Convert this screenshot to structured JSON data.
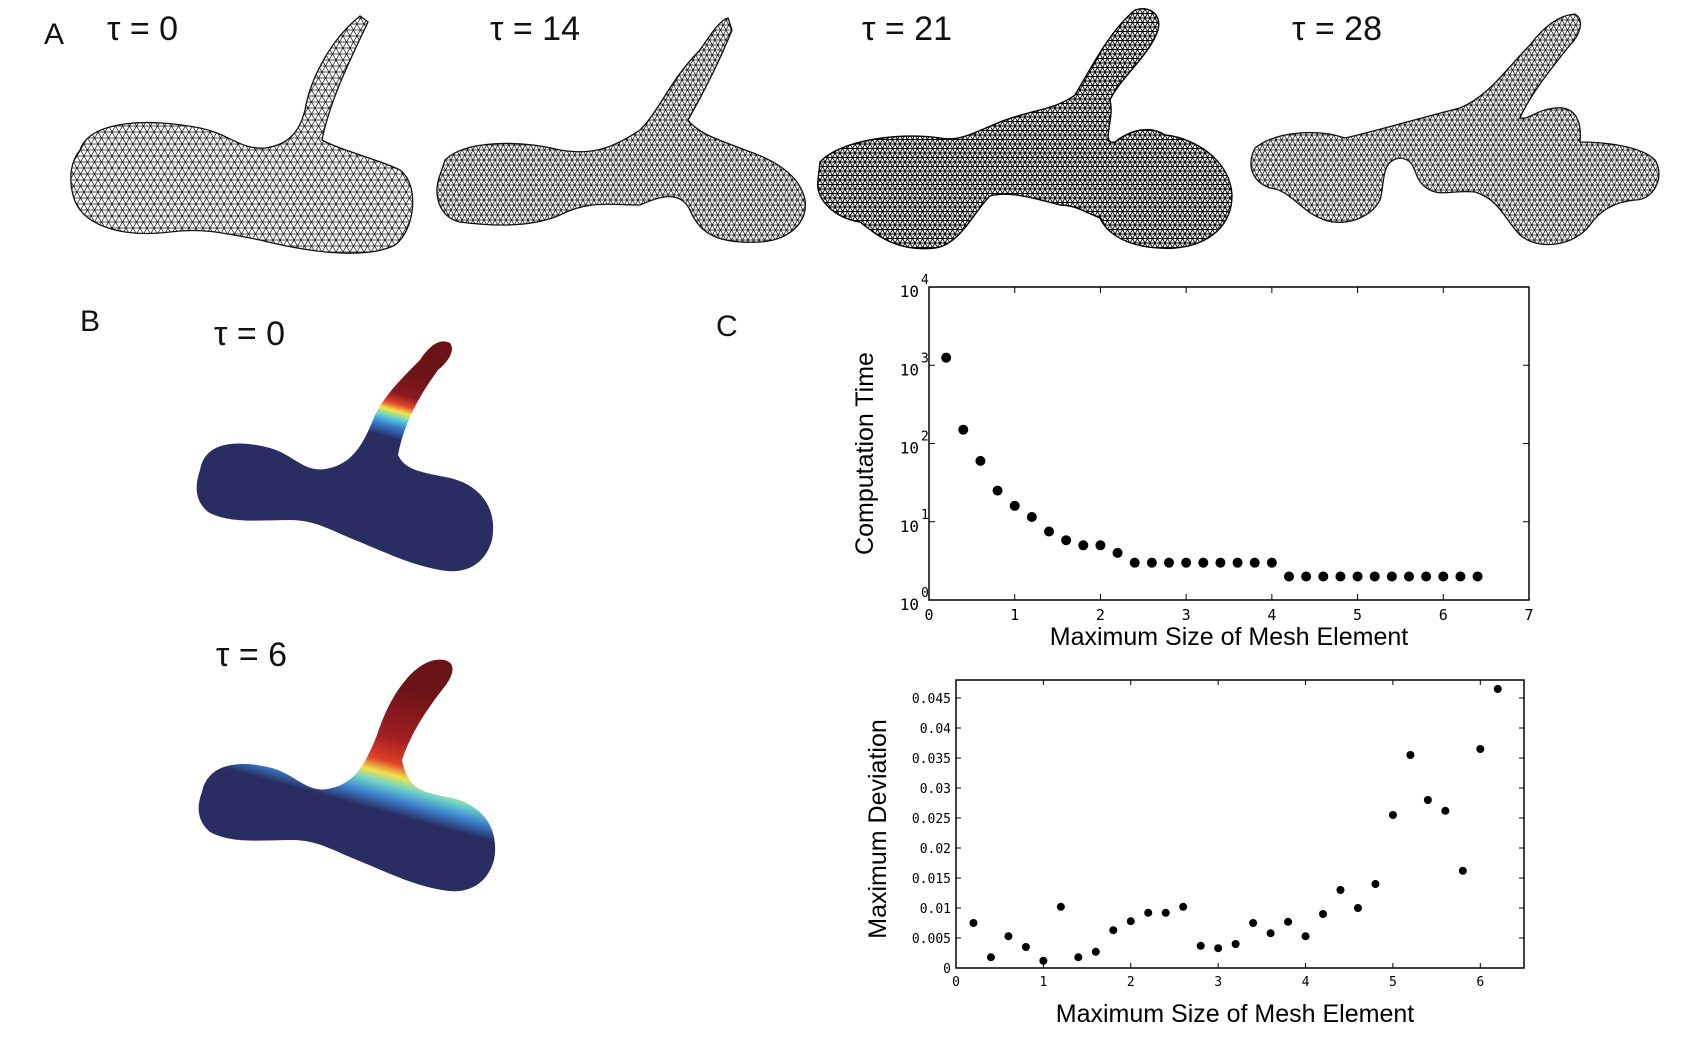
{
  "panels": {
    "A": {
      "label": "A",
      "frames": [
        {
          "tau": "τ = 0"
        },
        {
          "tau": "τ = 14"
        },
        {
          "tau": "τ = 21"
        },
        {
          "tau": "τ = 28"
        }
      ]
    },
    "B": {
      "label": "B",
      "frames": [
        {
          "tau": "τ = 0"
        },
        {
          "tau": "τ = 6"
        }
      ]
    },
    "C": {
      "label": "C"
    }
  },
  "chart_data": [
    {
      "type": "scatter",
      "xlabel": "Maximum Size of Mesh Element",
      "ylabel": "Computation Time",
      "y_scale": "log",
      "xlim": [
        0,
        7
      ],
      "ylim": [
        1,
        10000
      ],
      "x_ticks": [
        "0",
        "1",
        "2",
        "3",
        "4",
        "5",
        "6",
        "7"
      ],
      "y_ticks": [
        {
          "base": "10",
          "exp": "0"
        },
        {
          "base": "10",
          "exp": "1"
        },
        {
          "base": "10",
          "exp": "2"
        },
        {
          "base": "10",
          "exp": "3"
        },
        {
          "base": "10",
          "exp": "4"
        }
      ],
      "x": [
        0.2,
        0.4,
        0.6,
        0.8,
        1.0,
        1.2,
        1.4,
        1.6,
        1.8,
        2.0,
        2.2,
        2.4,
        2.6,
        2.8,
        3.0,
        3.2,
        3.4,
        3.6,
        3.8,
        4.0,
        4.2,
        4.4,
        4.6,
        4.8,
        5.0,
        5.2,
        5.4,
        5.6,
        5.8,
        6.0,
        6.2,
        6.4
      ],
      "y": [
        1250,
        150,
        60,
        25,
        16,
        11.5,
        7.5,
        5.8,
        5,
        5,
        4,
        3,
        3,
        3,
        3,
        3,
        3,
        3,
        3,
        3,
        2,
        2,
        2,
        2,
        2,
        2,
        2,
        2,
        2,
        2,
        2,
        2
      ],
      "grid": false
    },
    {
      "type": "scatter",
      "xlabel": "Maximum Size of Mesh Element",
      "ylabel": "Maximum Deviation",
      "xlim": [
        0,
        6.5
      ],
      "ylim": [
        0,
        0.048
      ],
      "x_ticks": [
        "0",
        "1",
        "2",
        "3",
        "4",
        "5",
        "6"
      ],
      "y_ticks": [
        "0",
        "0.005",
        "0.01",
        "0.015",
        "0.02",
        "0.025",
        "0.03",
        "0.035",
        "0.04",
        "0.045"
      ],
      "x": [
        0.2,
        0.4,
        0.6,
        0.8,
        1.0,
        1.2,
        1.4,
        1.6,
        1.8,
        2.0,
        2.2,
        2.4,
        2.6,
        2.8,
        3.0,
        3.2,
        3.4,
        3.6,
        3.8,
        4.0,
        4.2,
        4.4,
        4.6,
        4.8,
        5.0,
        5.2,
        5.4,
        5.6,
        5.8,
        6.0,
        6.2
      ],
      "y": [
        0.0075,
        0.0018,
        0.0053,
        0.0035,
        0.0012,
        0.0102,
        0.0018,
        0.0027,
        0.0063,
        0.0078,
        0.0092,
        0.0092,
        0.0102,
        0.0037,
        0.0033,
        0.004,
        0.0075,
        0.0058,
        0.0077,
        0.0053,
        0.009,
        0.013,
        0.01,
        0.014,
        0.0255,
        0.0355,
        0.028,
        0.0262,
        0.0162,
        0.0365,
        0.0465
      ],
      "grid": false
    }
  ]
}
